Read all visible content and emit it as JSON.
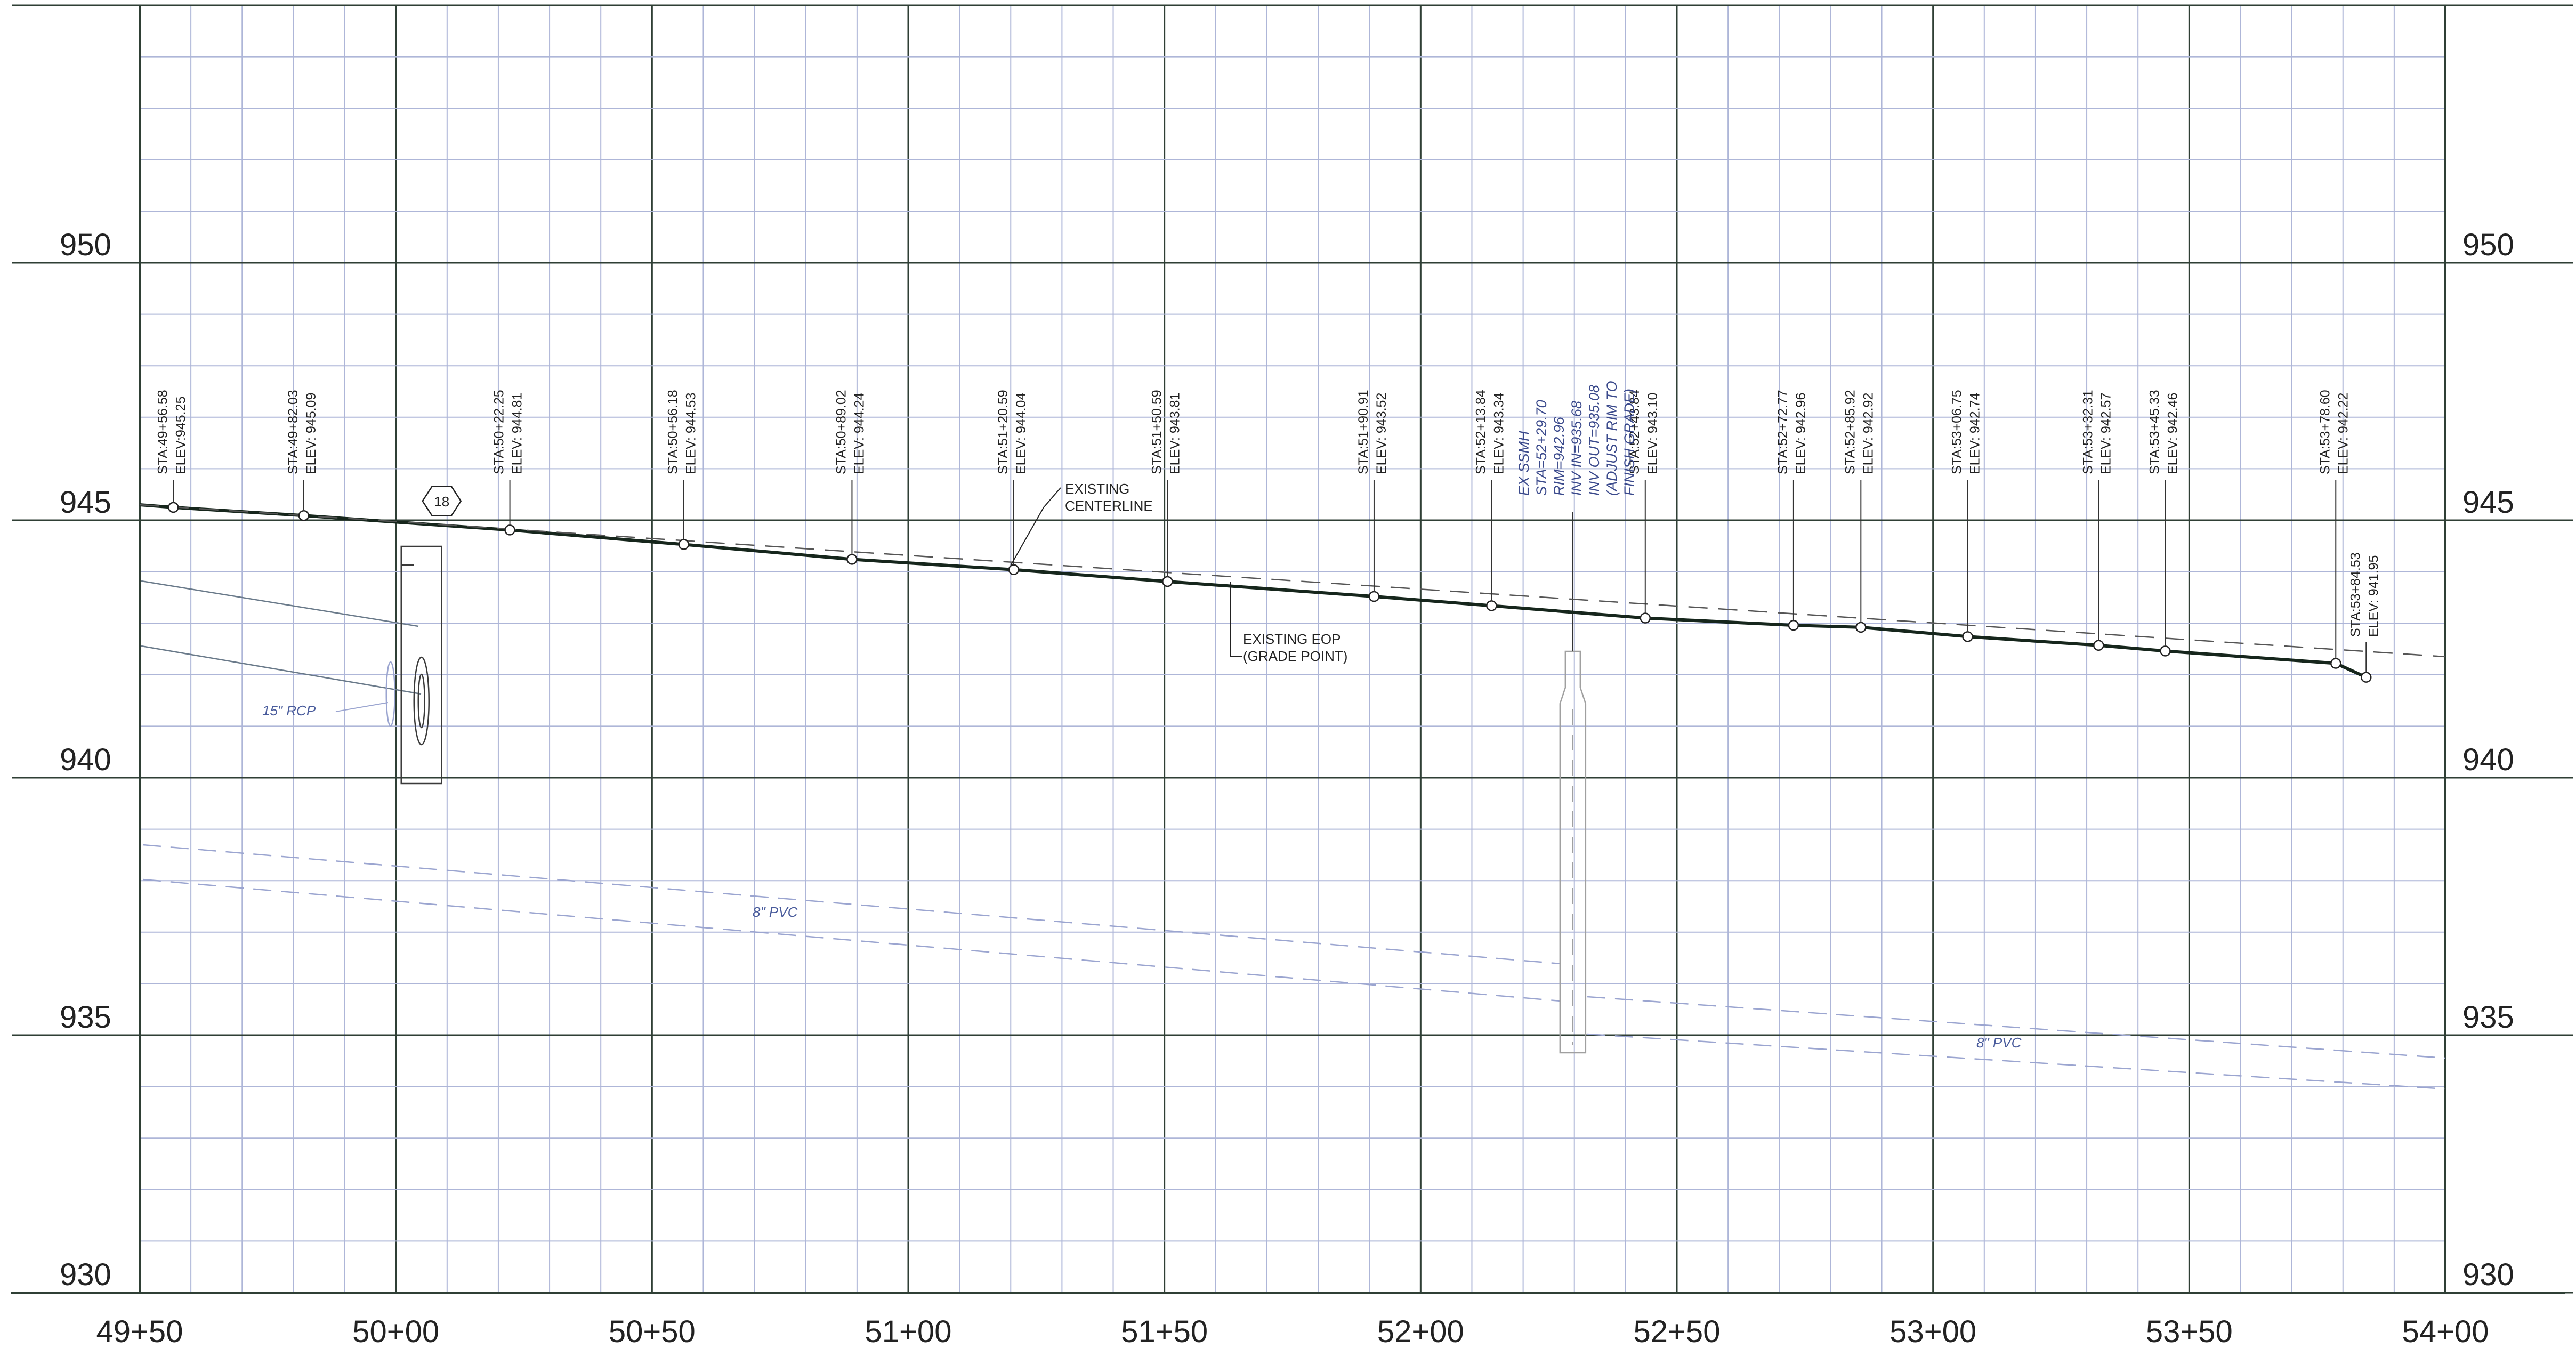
{
  "sheet": {
    "x_labels": [
      "49+50",
      "50+00",
      "50+50",
      "51+00",
      "51+50",
      "52+00",
      "52+50",
      "53+00",
      "53+50",
      "54+00"
    ],
    "y_labels": [
      "950",
      "945",
      "940",
      "935",
      "930"
    ]
  },
  "chart_data": {
    "type": "line",
    "title": "",
    "xlabel": "",
    "ylabel": "",
    "x_unit": "station (ft)",
    "xlim": [
      4950,
      5400
    ],
    "ylim": [
      930,
      955
    ],
    "grid": true,
    "series": [
      {
        "name": "EXISTING CENTERLINE",
        "style": "solid",
        "points": [
          [
            4950,
            945.3
          ],
          [
            4956.58,
            945.25
          ],
          [
            4982.03,
            945.09
          ],
          [
            5022.25,
            944.81
          ],
          [
            5056.18,
            944.53
          ],
          [
            5089.02,
            944.24
          ],
          [
            5120.59,
            944.04
          ],
          [
            5150.59,
            943.81
          ],
          [
            5190.91,
            943.52
          ],
          [
            5213.84,
            943.34
          ],
          [
            5243.84,
            943.1
          ],
          [
            5272.77,
            942.96
          ],
          [
            5285.92,
            942.92
          ],
          [
            5306.75,
            942.74
          ],
          [
            5332.31,
            942.57
          ],
          [
            5345.33,
            942.46
          ],
          [
            5378.6,
            942.22
          ],
          [
            5384.53,
            941.95
          ]
        ]
      },
      {
        "name": "EXISTING EOP (GRADE POINT)",
        "style": "dashed",
        "points": [
          [
            4950,
            945.3
          ],
          [
            5400,
            942.35
          ]
        ]
      }
    ],
    "points": [
      {
        "sta": "STA:49+56.58",
        "elev": "ELEV:945.25",
        "x": 4956.58,
        "y": 945.25
      },
      {
        "sta": "STA:49+82.03",
        "elev": "ELEV: 945.09",
        "x": 4982.03,
        "y": 945.09
      },
      {
        "sta": "STA:50+22.25",
        "elev": "ELEV: 944.81",
        "x": 5022.25,
        "y": 944.81
      },
      {
        "sta": "STA:50+56.18",
        "elev": "ELEV: 944.53",
        "x": 5056.18,
        "y": 944.53
      },
      {
        "sta": "STA:50+89.02",
        "elev": "ELEV: 944.24",
        "x": 5089.02,
        "y": 944.24
      },
      {
        "sta": "STA:51+20.59",
        "elev": "ELEV: 944.04",
        "x": 5120.59,
        "y": 944.04
      },
      {
        "sta": "STA:51+50.59",
        "elev": "ELEV: 943.81",
        "x": 5150.59,
        "y": 943.81
      },
      {
        "sta": "STA:51+90.91",
        "elev": "ELEV: 943.52",
        "x": 5190.91,
        "y": 943.52
      },
      {
        "sta": "STA:52+13.84",
        "elev": "ELEV: 943.34",
        "x": 5213.84,
        "y": 943.34
      },
      {
        "sta": "STA:52+43.84",
        "elev": "ELEV: 943.10",
        "x": 5243.84,
        "y": 943.1
      },
      {
        "sta": "STA:52+72.77",
        "elev": "ELEV: 942.96",
        "x": 5272.77,
        "y": 942.96
      },
      {
        "sta": "STA:52+85.92",
        "elev": "ELEV: 942.92",
        "x": 5285.92,
        "y": 942.92
      },
      {
        "sta": "STA:53+06.75",
        "elev": "ELEV: 942.74",
        "x": 5306.75,
        "y": 942.74
      },
      {
        "sta": "STA:53+32.31",
        "elev": "ELEV: 942.57",
        "x": 5332.31,
        "y": 942.57
      },
      {
        "sta": "STA:53+45.33",
        "elev": "ELEV: 942.46",
        "x": 5345.33,
        "y": 942.46
      },
      {
        "sta": "STA:53+78.60",
        "elev": "ELEV: 942.22",
        "x": 5378.6,
        "y": 942.22
      },
      {
        "sta": "STA:53+84.53",
        "elev": "ELEV: 941.95",
        "x": 5384.53,
        "y": 941.95
      }
    ],
    "annotations": {
      "centerline": [
        "EXISTING",
        "CENTERLINE"
      ],
      "eop": [
        "EXISTING EOP",
        "(GRADE POINT)"
      ],
      "marker": "18",
      "rcp": "15\" RCP",
      "pvc_left": "8\" PVC",
      "pvc_right": "8\" PVC",
      "ssmh": [
        "EX SSMH",
        "STA=52+29.70",
        "RIM=942.96",
        "INV IN=935.68",
        "INV OUT=935.08",
        "(ADJUST RIM TO",
        "FINISH GRADE)"
      ]
    },
    "colors": {
      "profile": "#16261c",
      "grid_minor": "#aeb6d8",
      "grid_major": "#2f3f35",
      "utility": "#9ba5d0"
    }
  }
}
